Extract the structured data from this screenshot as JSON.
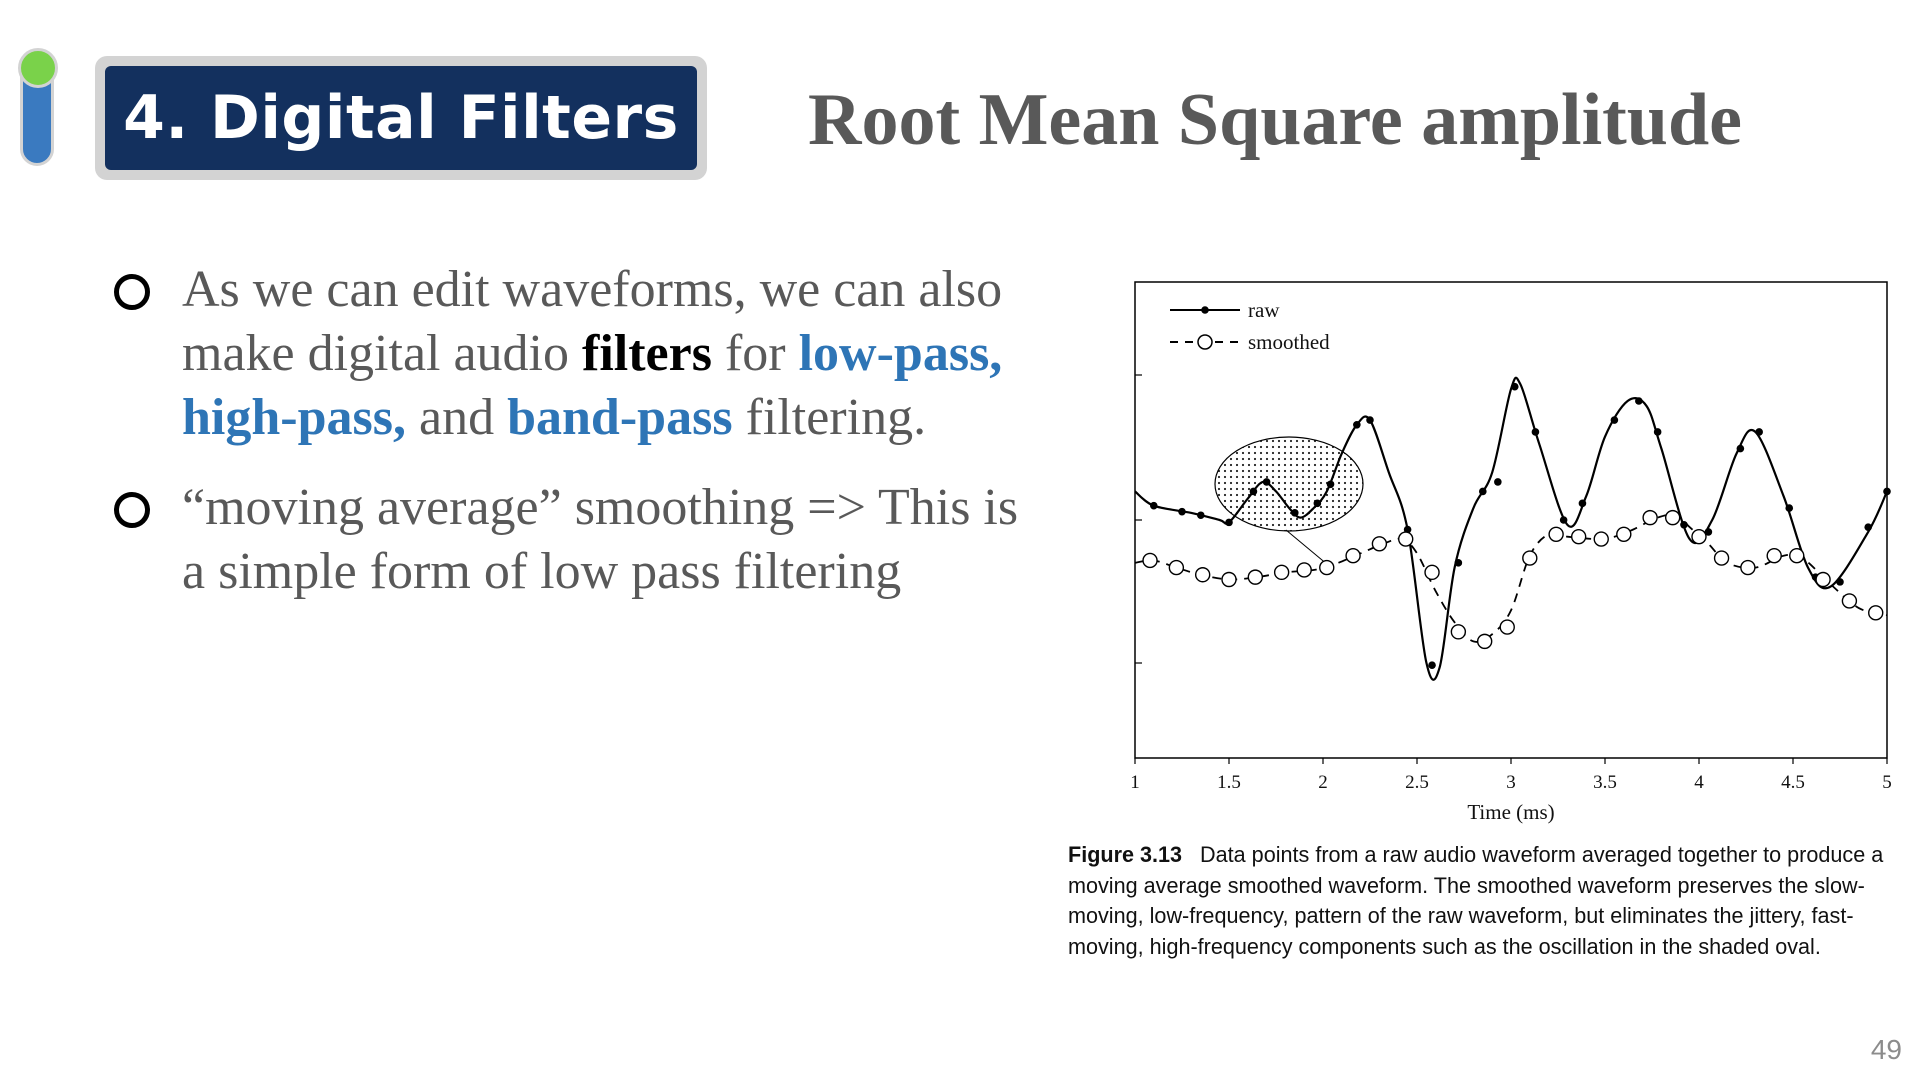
{
  "header": {
    "section_label": "4. Digital Filters",
    "title": "Root Mean Square amplitude"
  },
  "bullets": [
    {
      "parts": [
        {
          "text": "As we can edit waveforms, we can also make digital audio ",
          "style": "plain"
        },
        {
          "text": "filters",
          "style": "em-black"
        },
        {
          "text": " for ",
          "style": "plain"
        },
        {
          "text": "low-pass, high-pass,",
          "style": "em-blue"
        },
        {
          "text": " and ",
          "style": "plain"
        },
        {
          "text": "band-pass",
          "style": "em-blue"
        },
        {
          "text": " filtering.",
          "style": "plain"
        }
      ]
    },
    {
      "parts": [
        {
          "text": "“moving average” smoothing => This is a simple form of low pass filtering",
          "style": "plain"
        }
      ]
    }
  ],
  "figure": {
    "caption_label": "Figure 3.13",
    "caption_text": "Data points from a raw audio waveform averaged together to produce a moving average smoothed waveform. The smoothed waveform preserves the slow-moving, low-frequency, pattern of the raw waveform, but eliminates the jittery, fast-moving, high-frequency components such as the oscillation in the shaded oval."
  },
  "chart_data": {
    "type": "line",
    "xlabel": "Time (ms)",
    "ylabel": "",
    "xlim": [
      1,
      5
    ],
    "ylim": [
      -1,
      1
    ],
    "xticks": [
      "1",
      "1.5",
      "2",
      "2.5",
      "3",
      "3.5",
      "4",
      "4.5",
      "5"
    ],
    "legend": "top-left",
    "grid": false,
    "series": [
      {
        "name": "raw",
        "style": "solid-filled-dots",
        "curve": [
          [
            1.0,
            0.12
          ],
          [
            1.1,
            0.06
          ],
          [
            1.3,
            0.03
          ],
          [
            1.45,
            0.0
          ],
          [
            1.5,
            -0.01
          ],
          [
            1.6,
            0.09
          ],
          [
            1.68,
            0.16
          ],
          [
            1.75,
            0.12
          ],
          [
            1.82,
            0.05
          ],
          [
            1.88,
            0.01
          ],
          [
            1.95,
            0.05
          ],
          [
            2.02,
            0.12
          ],
          [
            2.1,
            0.28
          ],
          [
            2.18,
            0.4
          ],
          [
            2.25,
            0.42
          ],
          [
            2.35,
            0.2
          ],
          [
            2.45,
            -0.04
          ],
          [
            2.55,
            -0.6
          ],
          [
            2.62,
            -0.62
          ],
          [
            2.7,
            -0.2
          ],
          [
            2.8,
            0.05
          ],
          [
            2.9,
            0.2
          ],
          [
            3.0,
            0.55
          ],
          [
            3.05,
            0.57
          ],
          [
            3.15,
            0.32
          ],
          [
            3.3,
            -0.02
          ],
          [
            3.4,
            0.1
          ],
          [
            3.5,
            0.35
          ],
          [
            3.62,
            0.5
          ],
          [
            3.72,
            0.48
          ],
          [
            3.8,
            0.3
          ],
          [
            3.95,
            -0.08
          ],
          [
            4.07,
            0.0
          ],
          [
            4.2,
            0.28
          ],
          [
            4.3,
            0.37
          ],
          [
            4.45,
            0.1
          ],
          [
            4.58,
            -0.2
          ],
          [
            4.7,
            -0.28
          ],
          [
            4.9,
            -0.05
          ],
          [
            5.0,
            0.12
          ]
        ],
        "markers": [
          [
            1.1,
            0.06
          ],
          [
            1.25,
            0.035
          ],
          [
            1.35,
            0.02
          ],
          [
            1.5,
            -0.01
          ],
          [
            1.63,
            0.12
          ],
          [
            1.7,
            0.16
          ],
          [
            1.85,
            0.03
          ],
          [
            1.97,
            0.07
          ],
          [
            2.04,
            0.15
          ],
          [
            2.18,
            0.4
          ],
          [
            2.25,
            0.42
          ],
          [
            2.45,
            -0.04
          ],
          [
            2.58,
            -0.61
          ],
          [
            2.72,
            -0.18
          ],
          [
            2.85,
            0.12
          ],
          [
            2.93,
            0.16
          ],
          [
            3.02,
            0.56
          ],
          [
            3.13,
            0.37
          ],
          [
            3.28,
            0.0
          ],
          [
            3.38,
            0.07
          ],
          [
            3.55,
            0.42
          ],
          [
            3.68,
            0.5
          ],
          [
            3.78,
            0.37
          ],
          [
            3.92,
            -0.02
          ],
          [
            4.05,
            -0.05
          ],
          [
            4.22,
            0.3
          ],
          [
            4.32,
            0.37
          ],
          [
            4.48,
            0.05
          ],
          [
            4.62,
            -0.24
          ],
          [
            4.75,
            -0.26
          ],
          [
            4.9,
            -0.03
          ],
          [
            5.0,
            0.12
          ]
        ]
      },
      {
        "name": "smoothed",
        "style": "dashed-open-circles",
        "curve": [
          [
            1.0,
            -0.18
          ],
          [
            1.1,
            -0.17
          ],
          [
            1.22,
            -0.2
          ],
          [
            1.35,
            -0.23
          ],
          [
            1.5,
            -0.25
          ],
          [
            1.65,
            -0.24
          ],
          [
            1.8,
            -0.22
          ],
          [
            1.95,
            -0.21
          ],
          [
            2.05,
            -0.19
          ],
          [
            2.2,
            -0.14
          ],
          [
            2.32,
            -0.1
          ],
          [
            2.42,
            -0.08
          ],
          [
            2.5,
            -0.14
          ],
          [
            2.6,
            -0.3
          ],
          [
            2.7,
            -0.43
          ],
          [
            2.8,
            -0.51
          ],
          [
            2.9,
            -0.48
          ],
          [
            3.0,
            -0.38
          ],
          [
            3.1,
            -0.15
          ],
          [
            3.2,
            -0.06
          ],
          [
            3.3,
            -0.07
          ],
          [
            3.45,
            -0.08
          ],
          [
            3.55,
            -0.07
          ],
          [
            3.65,
            -0.04
          ],
          [
            3.78,
            0.01
          ],
          [
            3.88,
            0.02
          ],
          [
            3.95,
            -0.03
          ],
          [
            4.05,
            -0.1
          ],
          [
            4.15,
            -0.18
          ],
          [
            4.3,
            -0.2
          ],
          [
            4.45,
            -0.15
          ],
          [
            4.55,
            -0.16
          ],
          [
            4.7,
            -0.27
          ],
          [
            4.85,
            -0.37
          ],
          [
            5.0,
            -0.4
          ]
        ],
        "markers": [
          [
            1.08,
            -0.17
          ],
          [
            1.22,
            -0.2
          ],
          [
            1.36,
            -0.23
          ],
          [
            1.5,
            -0.25
          ],
          [
            1.64,
            -0.24
          ],
          [
            1.78,
            -0.22
          ],
          [
            1.9,
            -0.21
          ],
          [
            2.02,
            -0.2
          ],
          [
            2.16,
            -0.15
          ],
          [
            2.3,
            -0.1
          ],
          [
            2.44,
            -0.08
          ],
          [
            2.58,
            -0.22
          ],
          [
            2.72,
            -0.47
          ],
          [
            2.86,
            -0.51
          ],
          [
            2.98,
            -0.45
          ],
          [
            3.1,
            -0.16
          ],
          [
            3.24,
            -0.06
          ],
          [
            3.36,
            -0.07
          ],
          [
            3.48,
            -0.08
          ],
          [
            3.6,
            -0.06
          ],
          [
            3.74,
            0.01
          ],
          [
            3.86,
            0.01
          ],
          [
            4.0,
            -0.07
          ],
          [
            4.12,
            -0.16
          ],
          [
            4.26,
            -0.2
          ],
          [
            4.4,
            -0.15
          ],
          [
            4.52,
            -0.15
          ],
          [
            4.66,
            -0.25
          ],
          [
            4.8,
            -0.34
          ],
          [
            4.94,
            -0.39
          ]
        ]
      }
    ]
  },
  "footer": {
    "page_number": "49"
  }
}
